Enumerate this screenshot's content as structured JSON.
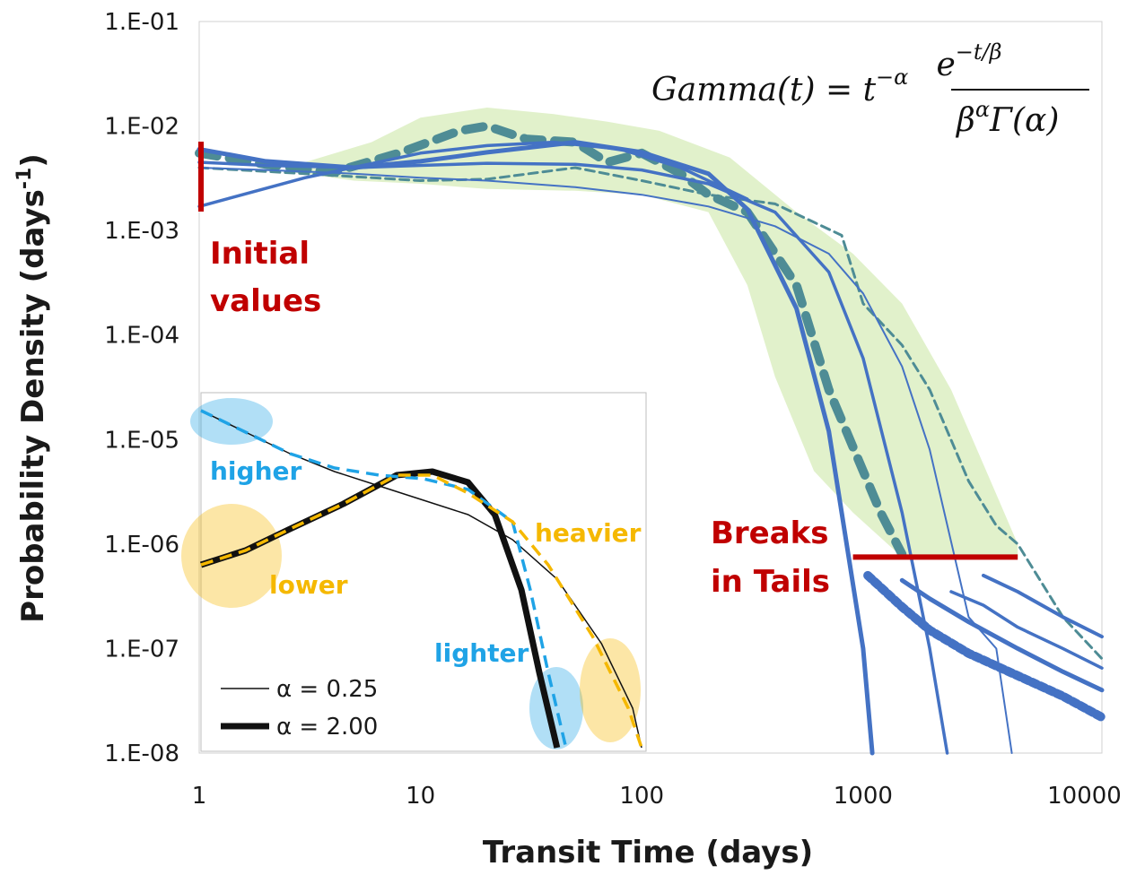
{
  "chart_data": {
    "type": "line",
    "xlabel": "Transit Time (days)",
    "ylabel_main": "Probability Density (days",
    "ylabel_sup": "-1",
    "ylabel_close": ")",
    "x_scale": "log",
    "y_scale": "log",
    "xlim": [
      1,
      12000
    ],
    "ylim": [
      1e-08,
      0.1
    ],
    "x_ticks": [
      "1",
      "10",
      "100",
      "1000",
      "10000"
    ],
    "y_ticks": [
      "1.E-01",
      "1.E-02",
      "1.E-03",
      "1.E-04",
      "1.E-05",
      "1.E-06",
      "1.E-07",
      "1.E-08"
    ],
    "formula": {
      "lhs": "Gamma(t) = t",
      "lhs_exp": "−α",
      "numerator": "e",
      "numerator_exp": "−t/β",
      "denominator": "β",
      "denominator_exp": "α",
      "denominator_tail": "Γ(α)"
    },
    "colors": {
      "gamma_curves": "#4472c4",
      "empirical_curves": "#4e8c95",
      "envelope": "#c8e6a0",
      "annotation_red": "#c00000",
      "inset_blue": "#1fa3e6",
      "inset_orange": "#f5b800"
    },
    "annotations": {
      "initial_values": [
        "Initial",
        "values"
      ],
      "breaks_in_tails": [
        "Breaks",
        "in Tails"
      ],
      "breaks_level": 7.5e-07,
      "breaks_x_range": [
        900,
        5000
      ]
    },
    "gamma_series": [
      {
        "alpha": 0.5,
        "beta": 120,
        "width": 5,
        "x": [
          1,
          2,
          5,
          10,
          20,
          50,
          100,
          200,
          300,
          500,
          700,
          1000,
          1100
        ],
        "y": [
          0.006,
          0.0046,
          0.004,
          0.0046,
          0.0056,
          0.007,
          0.0056,
          0.0035,
          0.0016,
          0.00018,
          1.2e-05,
          1e-07,
          1e-08
        ]
      },
      {
        "alpha": 0.85,
        "beta": 200,
        "width": 3.5,
        "x": [
          1,
          2,
          5,
          10,
          20,
          50,
          100,
          200,
          400,
          700,
          1000,
          1500,
          2000,
          2400
        ],
        "y": [
          0.0045,
          0.0042,
          0.004,
          0.0042,
          0.0044,
          0.0043,
          0.0038,
          0.0028,
          0.0015,
          0.0004,
          6e-05,
          2e-06,
          1e-07,
          1e-08
        ]
      },
      {
        "alpha": 1.15,
        "beta": 400,
        "width": 2,
        "x": [
          1,
          2,
          5,
          10,
          20,
          50,
          100,
          200,
          400,
          700,
          1000,
          1500,
          2000,
          3000,
          4000,
          4700
        ],
        "y": [
          0.004,
          0.0038,
          0.0035,
          0.0032,
          0.003,
          0.0026,
          0.0022,
          0.0017,
          0.0011,
          0.0006,
          0.00025,
          5e-05,
          8e-06,
          2e-07,
          1e-07,
          1e-08
        ]
      },
      {
        "alpha": -0.6,
        "beta": 60,
        "width": 3.5,
        "x": [
          1,
          3,
          10,
          20,
          40,
          80,
          150,
          300
        ],
        "y": [
          0.0017,
          0.0032,
          0.0055,
          0.0065,
          0.007,
          0.006,
          0.004,
          0.002
        ]
      }
    ],
    "tail_series": [
      {
        "width": 10,
        "x": [
          1050,
          1500,
          2000,
          3000,
          5000,
          8000,
          12000
        ],
        "y": [
          5e-07,
          2.5e-07,
          1.5e-07,
          9e-08,
          5.5e-08,
          3.5e-08,
          2.2e-08
        ]
      },
      {
        "width": 5,
        "x": [
          1500,
          2000,
          3000,
          5000,
          8000,
          12000
        ],
        "y": [
          4.5e-07,
          3e-07,
          1.8e-07,
          1e-07,
          6e-08,
          4e-08
        ]
      },
      {
        "width": 3.5,
        "x": [
          2500,
          3500,
          5000,
          8000,
          12000
        ],
        "y": [
          3.5e-07,
          2.6e-07,
          1.6e-07,
          1e-07,
          6.5e-08
        ]
      },
      {
        "width": 4,
        "x": [
          3500,
          5000,
          8000,
          12000
        ],
        "y": [
          5e-07,
          3.5e-07,
          2e-07,
          1.3e-07
        ]
      }
    ],
    "empirical_series": [
      {
        "width": 10,
        "dash": "20 14",
        "x": [
          1,
          2,
          4,
          8,
          15,
          20,
          30,
          50,
          70,
          100,
          150,
          200,
          300,
          500,
          700,
          1000,
          1200,
          1500
        ],
        "y": [
          0.0055,
          0.0043,
          0.0036,
          0.0055,
          0.009,
          0.01,
          0.0075,
          0.007,
          0.0045,
          0.0055,
          0.0035,
          0.0022,
          0.0015,
          0.0003,
          3e-05,
          5e-06,
          2e-06,
          8e-07
        ]
      },
      {
        "width": 3,
        "dash": "10 6",
        "x": [
          1,
          3,
          10,
          20,
          50,
          100,
          200,
          400,
          600,
          800,
          1000,
          1500,
          2000,
          3000,
          4000,
          5000,
          8000,
          12000
        ],
        "y": [
          0.004,
          0.0035,
          0.003,
          0.0031,
          0.004,
          0.003,
          0.0022,
          0.0018,
          0.0012,
          0.0009,
          0.0002,
          8e-05,
          3e-05,
          4e-06,
          1.5e-06,
          1e-06,
          2e-07,
          8e-08
        ]
      }
    ],
    "inset": {
      "labels": {
        "higher": "higher",
        "lower": "lower",
        "heavier": "heavier",
        "lighter": "lighter"
      },
      "legend": [
        {
          "label": "α = 0.25",
          "width": 1.5
        },
        {
          "label": "α = 2.00",
          "width": 7
        }
      ],
      "series": [
        {
          "name": "",
          "style": "thin-black",
          "x": [
            0,
            0.1,
            0.2,
            0.3,
            0.4,
            0.5,
            0.6,
            0.7,
            0.8,
            0.9,
            1
          ],
          "y": [
            0.13,
            0.19,
            0.25,
            0.31,
            0.36,
            0.41,
            0.46,
            0.55,
            0.66,
            0.82,
            1.0
          ]
        },
        {
          "name": "",
          "style": "thick-black",
          "x": [
            0,
            0.1,
            0.2,
            0.3,
            0.4,
            0.5,
            0.6,
            0.7,
            0.75,
            0.8
          ],
          "y": [
            0.48,
            0.42,
            0.36,
            0.3,
            0.26,
            0.22,
            0.25,
            0.48,
            0.75,
            1.0
          ]
        }
      ]
    }
  }
}
